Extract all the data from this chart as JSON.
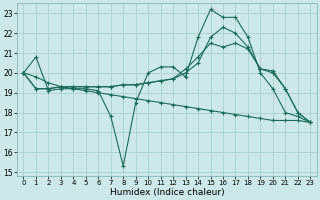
{
  "xlabel": "Humidex (Indice chaleur)",
  "xlim": [
    -0.5,
    23.5
  ],
  "ylim": [
    14.8,
    23.5
  ],
  "yticks": [
    15,
    16,
    17,
    18,
    19,
    20,
    21,
    22,
    23
  ],
  "xticks": [
    0,
    1,
    2,
    3,
    4,
    5,
    6,
    7,
    8,
    9,
    10,
    11,
    12,
    13,
    14,
    15,
    16,
    17,
    18,
    19,
    20,
    21,
    22,
    23
  ],
  "background_color": "#cce8e8",
  "grid_color": "#aacfcf",
  "line_color": "#1a6b5a",
  "line1_x": [
    0,
    1,
    2,
    3,
    4,
    5,
    6,
    7,
    8,
    9,
    10,
    11,
    12,
    13,
    14,
    15,
    16,
    17,
    18,
    19,
    20,
    21,
    22,
    23
  ],
  "line1_y": [
    20.0,
    20.8,
    19.1,
    19.2,
    19.2,
    19.2,
    19.1,
    17.8,
    15.3,
    18.5,
    20.0,
    20.3,
    20.3,
    19.8,
    21.8,
    23.2,
    22.8,
    22.8,
    21.8,
    20.0,
    19.2,
    18.0,
    17.8,
    17.5
  ],
  "line2_x": [
    0,
    1,
    2,
    3,
    4,
    5,
    6,
    7,
    8,
    9,
    10,
    11,
    12,
    13,
    14,
    15,
    16,
    17,
    18,
    19,
    20,
    21,
    22,
    23
  ],
  "line2_y": [
    20.0,
    19.8,
    19.5,
    19.3,
    19.2,
    19.1,
    19.0,
    18.9,
    18.8,
    18.7,
    18.6,
    18.5,
    18.4,
    18.3,
    18.2,
    18.1,
    18.0,
    17.9,
    17.8,
    17.7,
    17.6,
    17.6,
    17.6,
    17.5
  ],
  "line3_x": [
    0,
    1,
    2,
    3,
    4,
    5,
    6,
    7,
    8,
    9,
    10,
    11,
    12,
    13,
    14,
    15,
    16,
    17,
    18,
    19,
    20,
    21,
    22,
    23
  ],
  "line3_y": [
    20.0,
    19.2,
    19.2,
    19.3,
    19.3,
    19.3,
    19.3,
    19.3,
    19.4,
    19.4,
    19.5,
    19.6,
    19.7,
    20.0,
    20.5,
    21.8,
    22.3,
    22.0,
    21.3,
    20.2,
    20.0,
    19.2,
    18.0,
    17.5
  ],
  "line4_x": [
    0,
    1,
    2,
    3,
    4,
    5,
    6,
    7,
    8,
    9,
    10,
    11,
    12,
    13,
    14,
    15,
    16,
    17,
    18,
    19,
    20,
    21,
    22,
    23
  ],
  "line4_y": [
    20.0,
    19.2,
    19.2,
    19.3,
    19.3,
    19.3,
    19.3,
    19.3,
    19.4,
    19.4,
    19.5,
    19.6,
    19.7,
    20.2,
    20.8,
    21.5,
    21.3,
    21.5,
    21.2,
    20.2,
    20.1,
    19.2,
    18.0,
    17.5
  ]
}
